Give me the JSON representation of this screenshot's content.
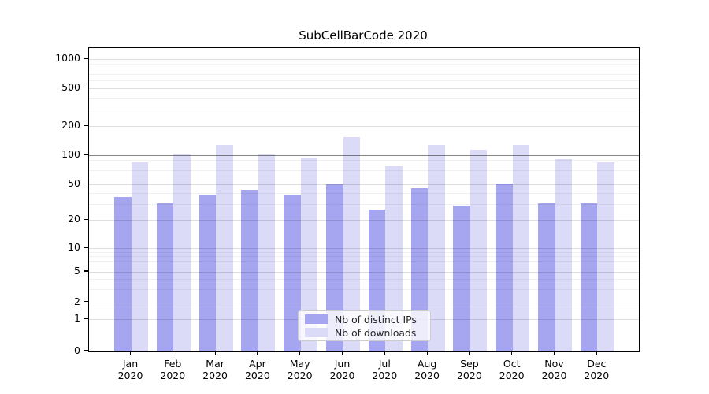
{
  "title": "SubCellBarCode 2020",
  "legend": {
    "items": [
      {
        "label": "Nb of distinct IPs",
        "color": "#a5a5f0"
      },
      {
        "label": "Nb of downloads",
        "color": "#dbdbf8"
      }
    ]
  },
  "y_axis": {
    "tick_values": [
      0,
      1,
      2,
      5,
      10,
      20,
      50,
      100,
      200,
      500,
      1000
    ],
    "tick_labels": [
      "0",
      "1",
      "2",
      "5",
      "10",
      "20",
      "50",
      "100",
      "200",
      "500",
      "1000"
    ],
    "scale": "symlog"
  },
  "x_axis": {
    "months": [
      "Jan",
      "Feb",
      "Mar",
      "Apr",
      "May",
      "Jun",
      "Jul",
      "Aug",
      "Sep",
      "Oct",
      "Nov",
      "Dec"
    ],
    "year": "2020"
  },
  "chart_data": {
    "type": "bar",
    "title": "SubCellBarCode 2020",
    "categories": [
      "Jan 2020",
      "Feb 2020",
      "Mar 2020",
      "Apr 2020",
      "May 2020",
      "Jun 2020",
      "Jul 2020",
      "Aug 2020",
      "Sep 2020",
      "Oct 2020",
      "Nov 2020",
      "Dec 2020"
    ],
    "series": [
      {
        "name": "Nb of distinct IPs",
        "color": "#a5a5f0",
        "values": [
          36,
          31,
          39,
          44,
          39,
          50,
          26,
          45,
          29,
          51,
          31,
          31
        ]
      },
      {
        "name": "Nb of downloads",
        "color": "#dbdbf8",
        "values": [
          85,
          102,
          128,
          101,
          94,
          155,
          77,
          129,
          114,
          127,
          92,
          85
        ]
      }
    ],
    "xlabel": "",
    "ylabel": "",
    "yscale": "symlog",
    "yticks": [
      0,
      1,
      2,
      5,
      10,
      20,
      50,
      100,
      200,
      500,
      1000
    ],
    "ylim": [
      0,
      1200
    ],
    "grid": "both (log minor gridlines, drawn over bars)",
    "reference_line_y": 100,
    "legend_position": "inside lower center"
  }
}
